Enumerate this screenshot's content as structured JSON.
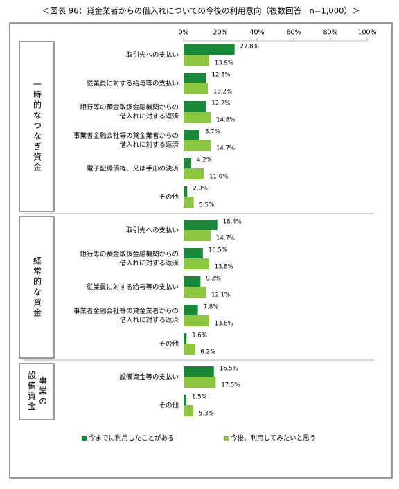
{
  "chart_data": {
    "type": "bar",
    "orientation": "horizontal",
    "title": "＜図表 96：貸金業者からの借入れについての今後の利用意向（複数回答　n=1,000）＞",
    "groups": [
      {
        "label": [
          "一時的なつなぎ資金"
        ],
        "size": 6
      },
      {
        "label": [
          "経常的な資金"
        ],
        "size": 5
      },
      {
        "label": [
          "事業の",
          "設備資金"
        ],
        "size": 2
      }
    ],
    "categories": [
      [
        "取引先への支払い"
      ],
      [
        "従業員に対する給与等の支払い"
      ],
      [
        "銀行等の預金取扱金融機関からの",
        "借入れに対する返済"
      ],
      [
        "事業者金融会社等の貸金業者からの",
        "借入れに対する返済"
      ],
      [
        "電子記録債権、又は手形の決済"
      ],
      [
        "その他"
      ],
      [
        "取引先への支払い"
      ],
      [
        "銀行等の預金取扱金融機関からの",
        "借入れに対する返済"
      ],
      [
        "従業員に対する給与等の支払い"
      ],
      [
        "事業者金融会社等の貸金業者からの",
        "借入れに対する返済"
      ],
      [
        "その他"
      ],
      [
        "設備資金等の支払い"
      ],
      [
        "その他"
      ]
    ],
    "series": [
      {
        "name": "今までに利用したことがある",
        "color": "#1a8a3a",
        "values": [
          27.8,
          12.3,
          12.2,
          8.7,
          4.2,
          2.0,
          18.4,
          10.5,
          9.2,
          7.8,
          1.6,
          16.5,
          1.5
        ],
        "value_labels": [
          "27.8%",
          "12.3%",
          "12.2%",
          "8.7%",
          "4.2%",
          "2.0%",
          "18.4%",
          "10.5%",
          "9.2%",
          "7.8%",
          "1.6%",
          "16.5%",
          "1.5%"
        ]
      },
      {
        "name": "今後、利用してみたいと思う",
        "color": "#8cc63e",
        "values": [
          13.9,
          13.2,
          14.8,
          14.7,
          11.0,
          5.5,
          14.7,
          13.8,
          12.1,
          13.8,
          6.2,
          17.5,
          5.3
        ],
        "value_labels": [
          "13.9%",
          "13.2%",
          "14.8%",
          "14.7%",
          "11.0%",
          "5.5%",
          "14.7%",
          "13.8%",
          "12.1%",
          "13.8%",
          "6.2%",
          "17.5%",
          "5.3%"
        ]
      }
    ],
    "xlim": [
      0,
      100
    ],
    "xticks": [
      {
        "value": 0,
        "label": "0%"
      },
      {
        "value": 20,
        "label": "20%"
      },
      {
        "value": 40,
        "label": "40%"
      },
      {
        "value": 60,
        "label": "60%"
      },
      {
        "value": 80,
        "label": "80%"
      },
      {
        "value": 100,
        "label": "100%"
      }
    ],
    "legend": "bottom"
  }
}
